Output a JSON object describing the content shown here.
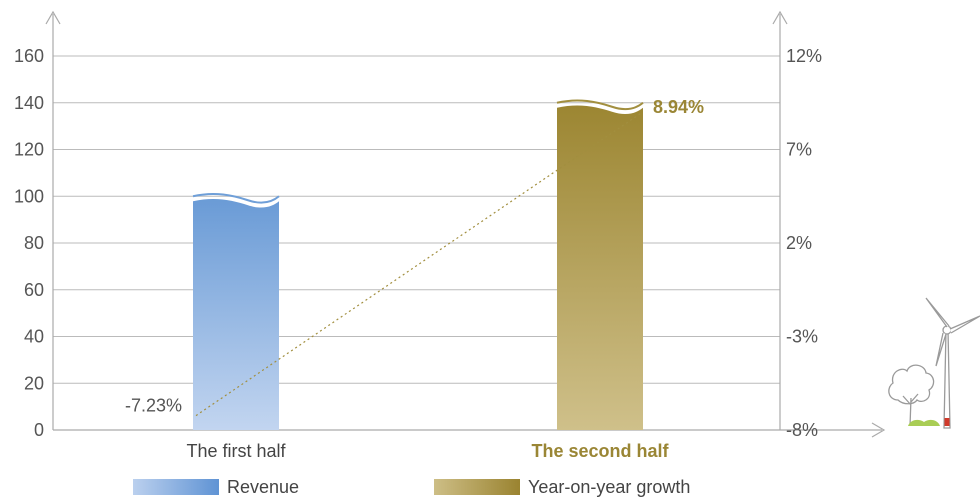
{
  "chart_data": {
    "type": "bar",
    "categories": [
      "The first half",
      "The second half"
    ],
    "series": [
      {
        "name": "Revenue",
        "axis": "left",
        "values": [
          100,
          140
        ],
        "color": "#6F9FD8"
      },
      {
        "name": "Year-on-year growth",
        "axis": "right",
        "type": "line",
        "values": [
          -7.23,
          8.94
        ],
        "color": "#A28F3F"
      }
    ],
    "growth_labels": [
      "-7.23%",
      "8.94%"
    ],
    "left_axis": {
      "ticks": [
        "0",
        "20",
        "40",
        "60",
        "80",
        "100",
        "120",
        "140",
        "160"
      ],
      "ylim": [
        0,
        160
      ]
    },
    "right_axis": {
      "ticks": [
        "-8%",
        "-3%",
        "2%",
        "7%",
        "12%"
      ],
      "ylim": [
        -8,
        12
      ]
    },
    "legend": [
      {
        "label": "Revenue",
        "color_start": "#BBD0EE",
        "color_end": "#5F93D4"
      },
      {
        "label": "Year-on-year growth",
        "color_start": "#CDBE86",
        "color_end": "#9A8330"
      }
    ],
    "legend_position": "bottom",
    "grid": true,
    "colors": {
      "grid": "#BBBBBB",
      "highlight": "#9A8635",
      "axis": "#AAAAAA"
    }
  }
}
